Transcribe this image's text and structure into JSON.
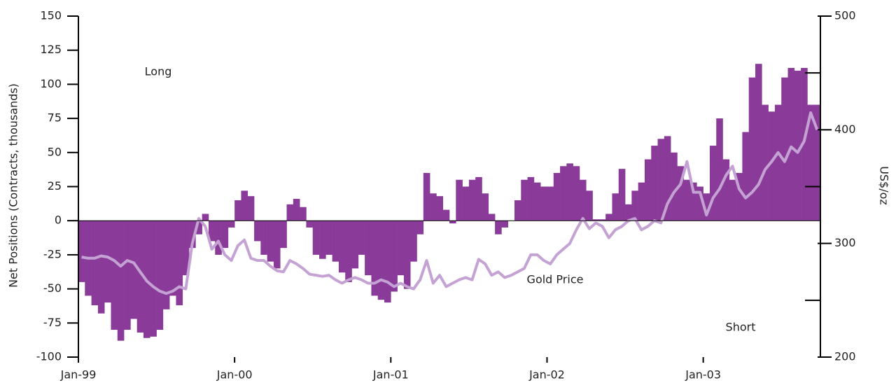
{
  "chart_data": {
    "type": "bar",
    "ylabel": "Net Positions (Contracts, thousands)",
    "y2label": "US$/oz",
    "annotations": [
      "Long",
      "Gold Price",
      "Short"
    ],
    "categories": [
      "Jan-99",
      null,
      null,
      null,
      null,
      null,
      null,
      null,
      null,
      null,
      null,
      null,
      null,
      null,
      null,
      null,
      null,
      null,
      null,
      null,
      null,
      null,
      null,
      null,
      "Jan-00",
      null,
      null,
      null,
      null,
      null,
      null,
      null,
      null,
      null,
      null,
      null,
      null,
      null,
      null,
      null,
      null,
      null,
      null,
      null,
      null,
      null,
      null,
      null,
      "Jan-01",
      null,
      null,
      null,
      null,
      null,
      null,
      null,
      null,
      null,
      null,
      null,
      null,
      null,
      null,
      null,
      null,
      null,
      null,
      null,
      null,
      null,
      null,
      null,
      "Jan-02",
      null,
      null,
      null,
      null,
      null,
      null,
      null,
      null,
      null,
      null,
      null,
      null,
      null,
      null,
      null,
      null,
      null,
      null,
      null,
      null,
      null,
      null,
      null,
      "Jan-03",
      null,
      null,
      null,
      null,
      null,
      null,
      null,
      null,
      null,
      null,
      null,
      null,
      null,
      null,
      null,
      null,
      null
    ],
    "series": [
      {
        "name": "Net Positions",
        "color": "#8a3b99",
        "values": [
          -45,
          -55,
          -62,
          -68,
          -60,
          -80,
          -88,
          -80,
          -72,
          -82,
          -86,
          -85,
          -80,
          -65,
          -55,
          -62,
          -40,
          -20,
          -10,
          5,
          -15,
          -25,
          -20,
          -5,
          15,
          22,
          18,
          -15,
          -25,
          -30,
          -35,
          -20,
          12,
          16,
          10,
          -5,
          -25,
          -28,
          -25,
          -30,
          -38,
          -45,
          -35,
          -25,
          -40,
          -55,
          -58,
          -60,
          -52,
          -40,
          -50,
          -30,
          -10,
          35,
          20,
          18,
          8,
          -2,
          30,
          25,
          30,
          32,
          20,
          5,
          -10,
          -5,
          0,
          15,
          30,
          32,
          28,
          25,
          25,
          35,
          40,
          42,
          40,
          30,
          22,
          1,
          1,
          5,
          20,
          38,
          12,
          22,
          28,
          45,
          55,
          60,
          62,
          50,
          40,
          30,
          28,
          25,
          20,
          55,
          75,
          45,
          30,
          35,
          65,
          105,
          115,
          85,
          80,
          85,
          105,
          112,
          110,
          112,
          85,
          85
        ]
      },
      {
        "name": "Gold Price",
        "color": "#c4a2d3",
        "axis": "y2",
        "values": [
          288,
          287,
          287,
          289,
          288,
          285,
          280,
          285,
          283,
          275,
          267,
          262,
          258,
          256,
          258,
          262,
          260,
          300,
          322,
          315,
          295,
          302,
          290,
          285,
          298,
          303,
          287,
          285,
          285,
          280,
          276,
          275,
          285,
          282,
          278,
          273,
          272,
          271,
          272,
          268,
          265,
          268,
          270,
          268,
          265,
          265,
          268,
          266,
          262,
          265,
          262,
          260,
          268,
          285,
          265,
          272,
          262,
          265,
          268,
          270,
          268,
          286,
          282,
          272,
          275,
          270,
          272,
          275,
          278,
          290,
          290,
          285,
          282,
          290,
          295,
          300,
          312,
          322,
          313,
          318,
          315,
          305,
          312,
          315,
          320,
          322,
          312,
          315,
          320,
          318,
          335,
          345,
          352,
          372,
          345,
          345,
          325,
          340,
          348,
          360,
          368,
          348,
          340,
          345,
          352,
          365,
          372,
          380,
          372,
          385,
          380,
          390,
          415,
          400
        ]
      }
    ],
    "ylim": [
      -100,
      150
    ],
    "yticks": [
      -100,
      -75,
      -50,
      -25,
      0,
      25,
      50,
      75,
      100,
      125,
      150
    ],
    "y2lim": [
      200,
      500
    ],
    "y2ticks": [
      200,
      300,
      400,
      500
    ]
  }
}
